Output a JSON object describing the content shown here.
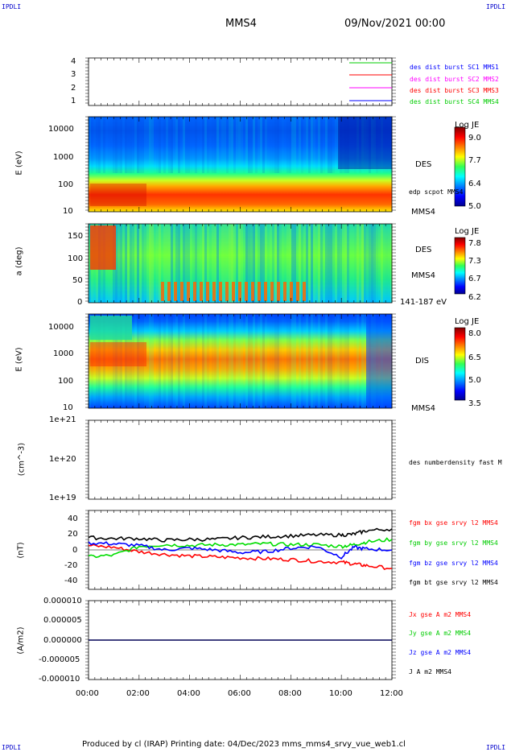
{
  "corners": {
    "tl": "IPDLI",
    "tr": "IPDLI",
    "bl": "IPDLI",
    "br": "IPDLI"
  },
  "header": {
    "title": "MMS4",
    "date": "09/Nov/2021 00:00"
  },
  "footer": "Produced by cl (IRAP)   Printing date: 04/Dec/2023   mms_mms4_srvy_vue_web1.cl",
  "xaxis": {
    "ticks": [
      "00:00",
      "02:00",
      "04:00",
      "06:00",
      "08:00",
      "10:00",
      "12:00"
    ]
  },
  "colors": {
    "red": "#ff0000",
    "green": "#00dd00",
    "blue": "#0000ff",
    "black": "#000000",
    "magenta": "#ff00ff"
  },
  "panels": {
    "p1": {
      "yticks": [
        "4",
        "3",
        "2",
        "1"
      ],
      "legend": [
        {
          "label": "des dist burst SC1 MMS1",
          "color": "#0000ff",
          "line": "#00cc00"
        },
        {
          "label": "des dist burst SC2 MMS2",
          "color": "#ff00ff",
          "line": "#ff0000"
        },
        {
          "label": "des dist burst SC3 MMS3",
          "color": "#ff0000",
          "line": "#ff00ff"
        },
        {
          "label": "des dist burst SC4 MMS4",
          "color": "#00cc00",
          "line": "#0000ff"
        }
      ]
    },
    "p2": {
      "ylabel": "E (eV)",
      "yticks": [
        "10000",
        "1000",
        "100",
        "10"
      ],
      "side": [
        "DES",
        "edp scpot MMS4",
        "MMS4"
      ],
      "cbar": {
        "title": "Log JE",
        "ticks": [
          "9.0",
          "7.7",
          "6.4",
          "5.0"
        ]
      }
    },
    "p3": {
      "ylabel": "a (deg)",
      "yticks": [
        "150",
        "100",
        "50",
        "0"
      ],
      "side": [
        "DES",
        "MMS4",
        "141-187 eV"
      ],
      "cbar": {
        "title": "Log JE",
        "ticks": [
          "7.8",
          "7.3",
          "6.7",
          "6.2"
        ]
      }
    },
    "p4": {
      "ylabel": "E (eV)",
      "yticks": [
        "10000",
        "1000",
        "100",
        "10"
      ],
      "side": [
        "DIS",
        "MMS4"
      ],
      "cbar": {
        "title": "Log JE",
        "ticks": [
          "8.0",
          "6.5",
          "5.0",
          "3.5"
        ]
      }
    },
    "p5": {
      "ylabel": "(cm^-3)",
      "yticks": [
        "1e+21",
        "1e+20",
        "1e+19"
      ],
      "side": "des numberdensity fast M"
    },
    "p6": {
      "ylabel": "(nT)",
      "yticks": [
        "40",
        "20",
        "0",
        "-20",
        "-40"
      ],
      "legend": [
        {
          "label": "fgm bx gse srvy l2 MMS4",
          "color": "#ff0000"
        },
        {
          "label": "fgm by gse srvy l2 MMS4",
          "color": "#00cc00"
        },
        {
          "label": "fgm bz gse srvy l2 MMS4",
          "color": "#0000ff"
        },
        {
          "label": "fgm bt gse srvy l2 MMS4",
          "color": "#000000"
        }
      ]
    },
    "p7": {
      "ylabel": "(A/m2)",
      "yticks": [
        "0.000010",
        "0.000005",
        "0.000000",
        "-0.000005",
        "-0.000010"
      ],
      "legend": [
        {
          "label": "Jx gse A m2 MMS4",
          "color": "#ff0000"
        },
        {
          "label": "Jy gse A m2 MMS4",
          "color": "#00cc00"
        },
        {
          "label": "Jz gse A m2 MMS4",
          "color": "#0000ff"
        },
        {
          "label": "J A m2 MMS4",
          "color": "#000000"
        }
      ]
    }
  },
  "chart_data": {
    "type": "line",
    "x_range": [
      "00:00",
      "12:00"
    ],
    "magnetic_field_nT": {
      "x_hours": [
        0,
        1,
        2,
        3,
        4,
        5,
        6,
        7,
        8,
        9,
        10,
        10.5,
        11,
        12
      ],
      "series": [
        {
          "name": "fgm bx gse srvy l2 MMS4",
          "values": [
            5,
            3,
            -2,
            -5,
            -7,
            -8,
            -9,
            -10,
            -11,
            -13,
            -14,
            -16,
            -18,
            -21
          ]
        },
        {
          "name": "fgm by gse srvy l2 MMS4",
          "values": [
            -8,
            -6,
            4,
            6,
            5,
            6,
            6,
            7,
            6,
            6,
            4,
            6,
            9,
            12
          ]
        },
        {
          "name": "fgm bz gse srvy l2 MMS4",
          "values": [
            8,
            7,
            5,
            0,
            2,
            0,
            -3,
            -2,
            2,
            4,
            -8,
            3,
            1,
            0
          ]
        },
        {
          "name": "fgm bt gse srvy l2 MMS4",
          "values": [
            14,
            13,
            13,
            11,
            12,
            12,
            14,
            15,
            16,
            17,
            17,
            18,
            22,
            24
          ]
        }
      ],
      "ylim": [
        -45,
        45
      ]
    },
    "current_density_A_m2": {
      "series": [
        {
          "name": "J A m2 MMS4",
          "values": [
            0,
            0
          ]
        }
      ],
      "ylim": [
        -1e-05,
        1e-05
      ]
    }
  }
}
